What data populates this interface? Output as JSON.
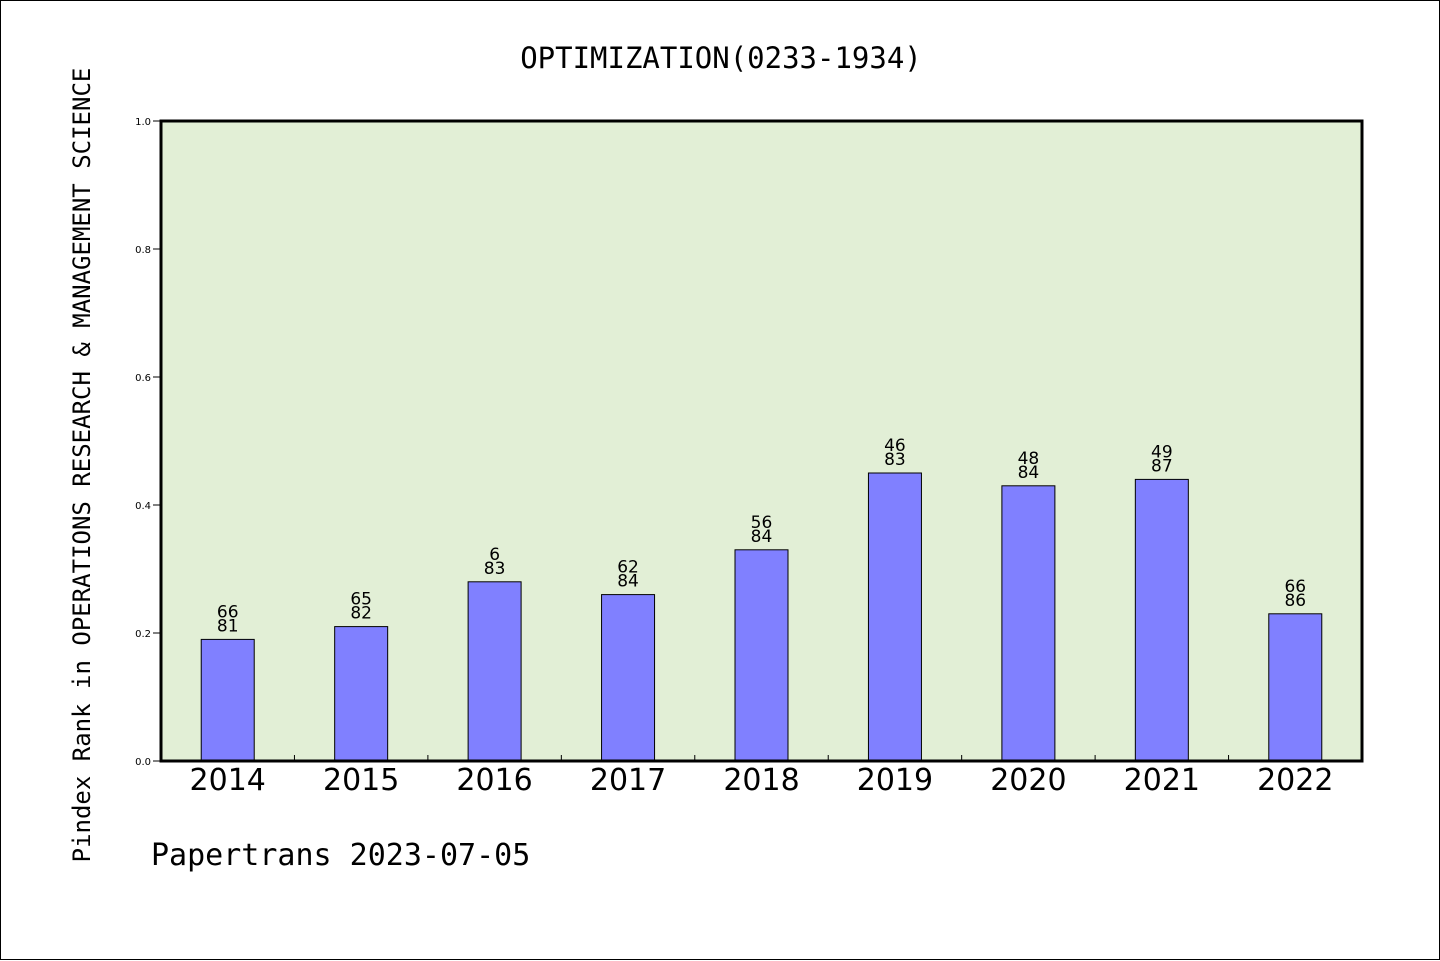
{
  "chart_data": {
    "type": "bar",
    "title": "OPTIMIZATION(0233-1934)",
    "ylabel": "Pindex Rank in OPERATIONS RESEARCH & MANAGEMENT SCIENCE",
    "xlabel": "",
    "categories": [
      "2014",
      "2015",
      "2016",
      "2017",
      "2018",
      "2019",
      "2020",
      "2021",
      "2022"
    ],
    "values": [
      0.19,
      0.21,
      0.28,
      0.26,
      0.33,
      0.45,
      0.43,
      0.44,
      0.23
    ],
    "bar_labels_top": [
      "66",
      "65",
      "6",
      "62",
      "56",
      "46",
      "48",
      "49",
      "66"
    ],
    "bar_labels_bottom": [
      "81",
      "82",
      "83",
      "84",
      "84",
      "83",
      "84",
      "87",
      "86"
    ],
    "ylim": [
      0,
      1.0
    ],
    "yticks": [
      "0.0",
      "0.2",
      "0.4",
      "0.6",
      "0.8",
      "1.0"
    ],
    "grid": false,
    "colors": {
      "bar": "#8080ff",
      "plot_background": "#e2efd6"
    }
  },
  "footer": {
    "text": "Papertrans 2023-07-05"
  }
}
